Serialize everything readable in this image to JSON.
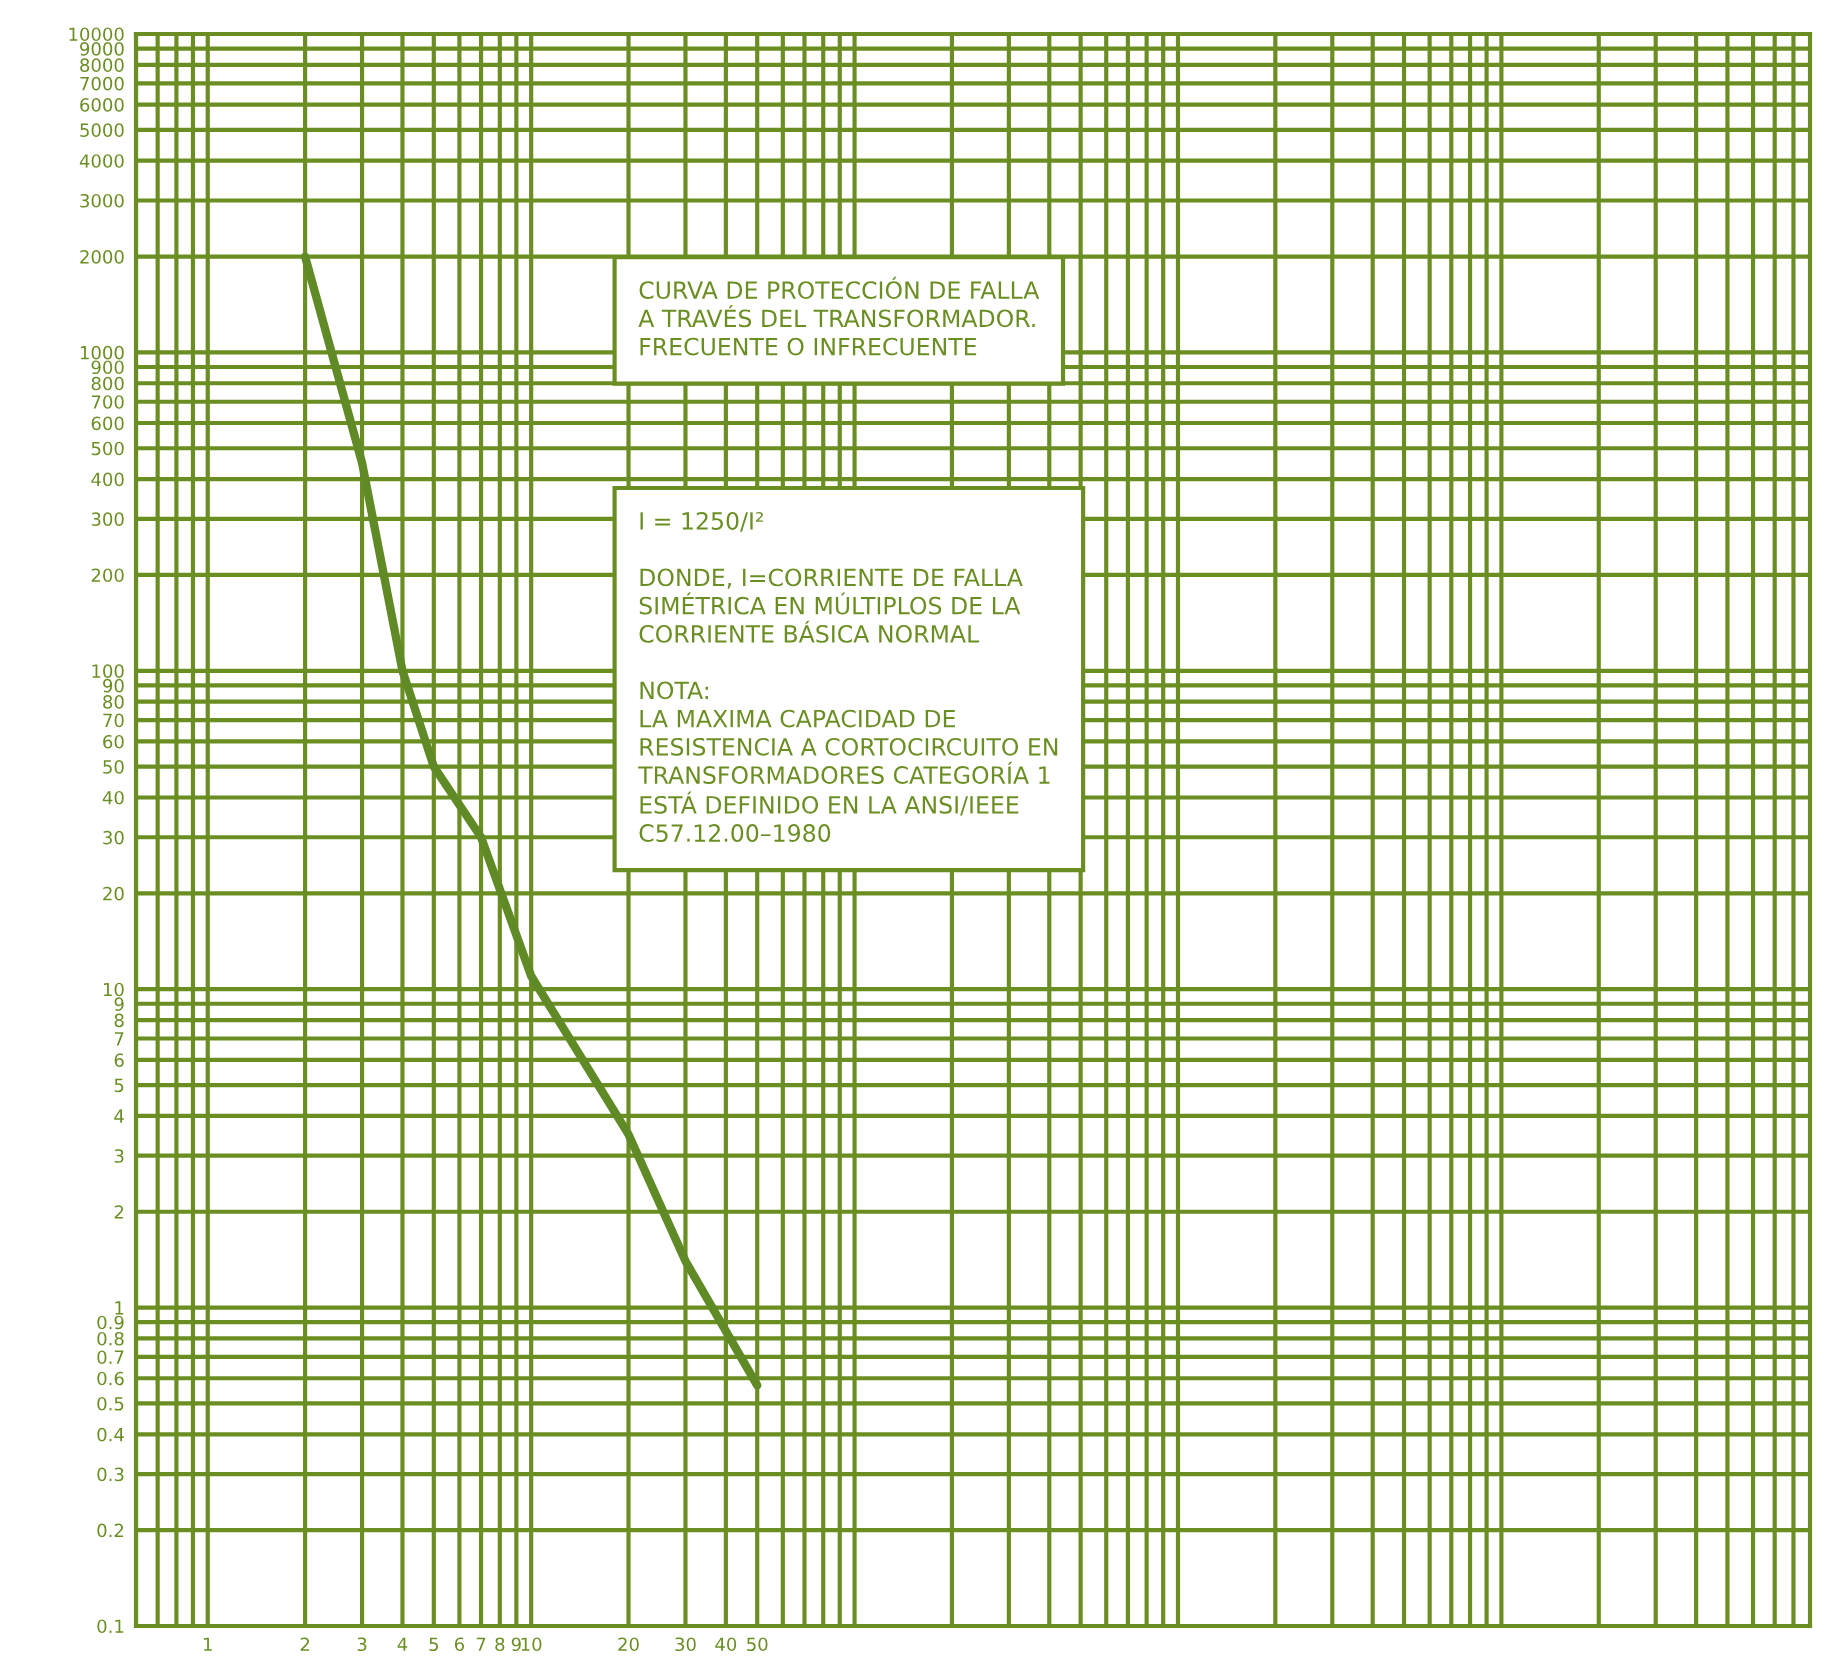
{
  "chart_data": {
    "type": "line",
    "x": [
      2,
      3,
      4,
      5,
      7,
      10,
      20,
      30,
      50
    ],
    "series": [
      {
        "color": "#5f8a25",
        "values": [
          2000,
          450,
          100,
          50,
          30,
          11,
          3.5,
          1.4,
          0.57
        ]
      }
    ],
    "log": "xy",
    "xlim": [
      0.6,
      90000
    ],
    "ylim": [
      0.1,
      10000
    ],
    "xticks": [
      {
        "value": 0.6,
        "label": null
      },
      {
        "value": 0.7,
        "label": null
      },
      {
        "value": 0.8,
        "label": null
      },
      {
        "value": 0.9,
        "label": null
      },
      1,
      2,
      3,
      4,
      5,
      6,
      7,
      8,
      9,
      10,
      20,
      30,
      40,
      50,
      {
        "value": 60,
        "label": null
      },
      {
        "value": 70,
        "label": null
      },
      {
        "value": 80,
        "label": null
      },
      {
        "value": 90,
        "label": null
      },
      {
        "value": 100,
        "label": null
      },
      {
        "value": 200,
        "label": null
      },
      {
        "value": 300,
        "label": null
      },
      {
        "value": 400,
        "label": null
      },
      {
        "value": 500,
        "label": null
      },
      {
        "value": 600,
        "label": null
      },
      {
        "value": 700,
        "label": null
      },
      {
        "value": 800,
        "label": null
      },
      {
        "value": 900,
        "label": null
      },
      {
        "value": 1000,
        "label": null
      },
      {
        "value": 2000,
        "label": null
      },
      {
        "value": 3000,
        "label": null
      },
      {
        "value": 4000,
        "label": null
      },
      {
        "value": 5000,
        "label": null
      },
      {
        "value": 6000,
        "label": null
      },
      {
        "value": 7000,
        "label": null
      },
      {
        "value": 8000,
        "label": null
      },
      {
        "value": 9000,
        "label": null
      },
      {
        "value": 10000,
        "label": null
      },
      {
        "value": 20000,
        "label": null
      },
      {
        "value": 30000,
        "label": null
      },
      {
        "value": 40000,
        "label": null
      },
      {
        "value": 50000,
        "label": null
      },
      {
        "value": 60000,
        "label": null
      },
      {
        "value": 70000,
        "label": null
      },
      {
        "value": 80000,
        "label": null
      }
    ],
    "yticks": [
      {
        "value": 0.1,
        "label": "0.1"
      },
      0.2,
      0.3,
      0.4,
      0.5,
      0.6,
      0.7,
      0.8,
      0.9,
      1,
      2,
      3,
      4,
      5,
      6,
      7,
      8,
      9,
      10,
      20,
      30,
      40,
      50,
      60,
      70,
      80,
      90,
      100,
      200,
      300,
      400,
      500,
      600,
      700,
      800,
      900,
      1000,
      2000,
      3000,
      4000,
      5000,
      6000,
      7000,
      8000,
      9000,
      10000
    ],
    "grid": true,
    "annotations": [
      "CURVA DE PROTECCIÓN DE FALLA\nA TRAVÉS DEL TRANSFORMADOR.\nFRECUENTE O INFRECUENTE",
      "I = 1250/I²\n\nDONDE, I=CORRIENTE DE FALLA\nSIMÉTRICA EN MÚLTIPLOS DE LA\nCORRIENTE BÁSICA NORMAL\n\nNOTA:\nLA MAXIMA CAPACIDAD DE\nRESISTENCIA A CORTOCIRCUITO EN\nTRANSFORMADORES CATEGORÍA 1\nESTÁ DEFINIDO EN LA ANSI/IEEE\nC57.12.00–1980"
    ]
  }
}
